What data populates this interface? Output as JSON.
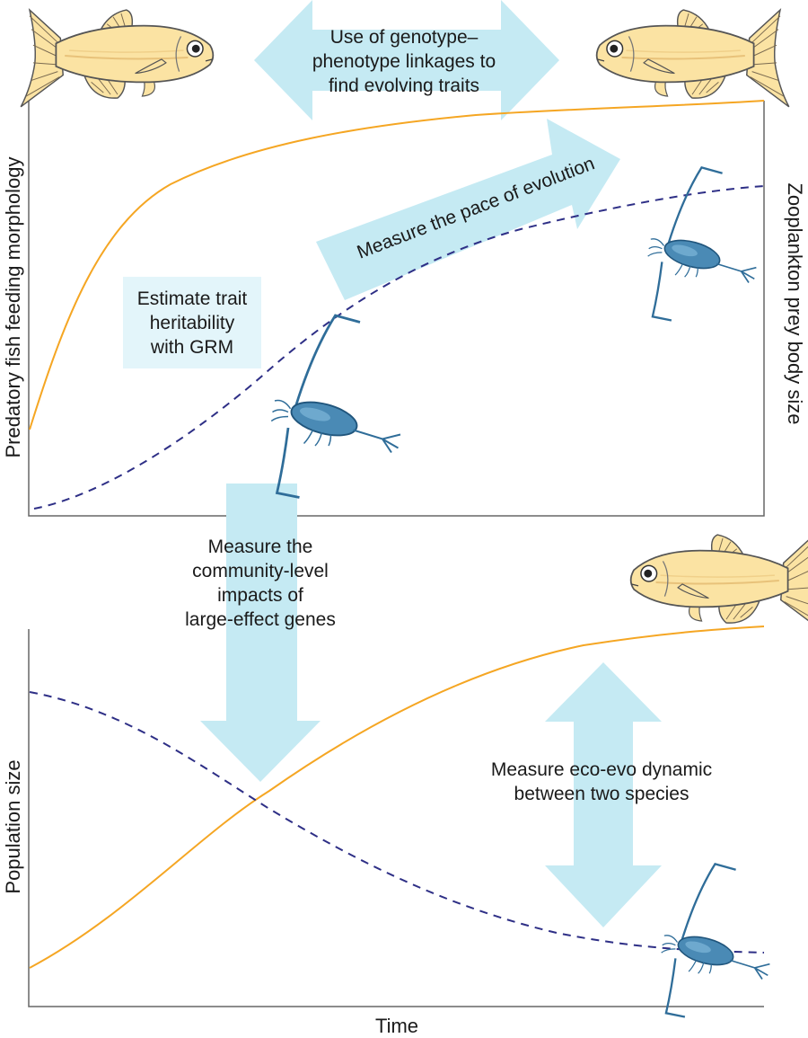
{
  "labels": {
    "arrow_top": [
      "Use of genotype–",
      "phenotype linkages to",
      "find evolving traits"
    ],
    "arrow_pace": "Measure the pace of evolution",
    "grm_box": [
      "Estimate trait",
      "heritability",
      "with GRM"
    ],
    "community": [
      "Measure the",
      "community-level",
      "impacts of",
      "large-effect genes"
    ],
    "eco_evo": [
      "Measure eco-evo dynamic",
      "between two species"
    ]
  },
  "axes": {
    "top_left_y": "Predatory fish feeding morphology",
    "top_right_y": "Zooplankton prey body size",
    "bottom_y": "Population size",
    "x": "Time"
  },
  "colors": {
    "fish_line": "#f5a623",
    "zooplankton_line": "#2e2f86",
    "arrow_fill": "#c5eaf3",
    "box_fill": "#e3f5fa",
    "fish_body": "#fbe3a3",
    "zooplankton_body": "#4a8ab5"
  },
  "icons": {
    "fish": "zebrafish-icon",
    "zooplankton": "copepod-icon"
  }
}
